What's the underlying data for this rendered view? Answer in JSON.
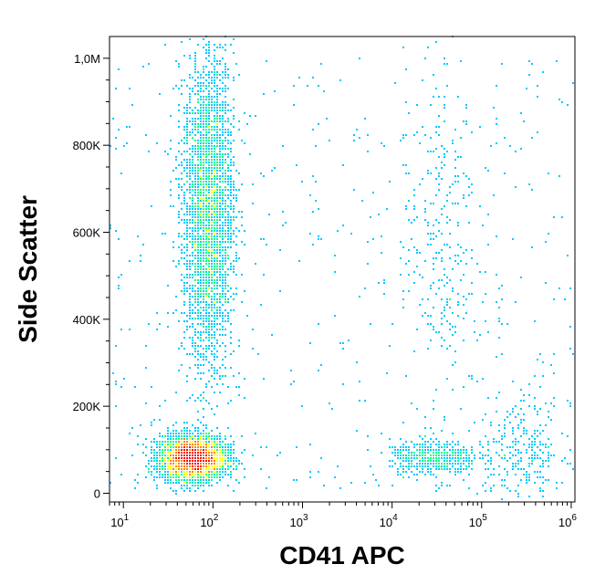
{
  "chart_data": {
    "type": "scatter",
    "subtype": "flow-cytometry-density-plot",
    "title": "",
    "xlabel": "CD41 APC",
    "ylabel": "Side Scatter",
    "x_scale": "log",
    "y_scale": "linear",
    "xlim": [
      7,
      1100000
    ],
    "ylim": [
      -20000,
      1050000
    ],
    "x_ticks": [
      {
        "value": 10,
        "base": "10",
        "exp": "1"
      },
      {
        "value": 100,
        "base": "10",
        "exp": "2"
      },
      {
        "value": 1000,
        "base": "10",
        "exp": "3"
      },
      {
        "value": 10000,
        "base": "10",
        "exp": "4"
      },
      {
        "value": 100000,
        "base": "10",
        "exp": "5"
      },
      {
        "value": 1000000,
        "base": "10",
        "exp": "6"
      }
    ],
    "y_ticks": [
      {
        "value": 0,
        "label": "0"
      },
      {
        "value": 200000,
        "label": "200K"
      },
      {
        "value": 400000,
        "label": "400K"
      },
      {
        "value": 600000,
        "label": "600K"
      },
      {
        "value": 800000,
        "label": "800K"
      },
      {
        "value": 1000000,
        "label": "1,0M"
      }
    ],
    "grid": false,
    "legend": "none",
    "color_scale": [
      "#0000ff",
      "#00c8ff",
      "#00ff80",
      "#ffff00",
      "#ff8000",
      "#ff0000"
    ],
    "populations": [
      {
        "name": "",
        "x_center": 60,
        "y_center": 80000,
        "x_spread_log": 0.18,
        "y_spread": 25000,
        "density": "very high"
      },
      {
        "name": "",
        "x_center": 90,
        "y_center": 650000,
        "x_spread_log": 0.14,
        "y_spread": 180000,
        "density": "high"
      },
      {
        "name": "",
        "x_center": 35000,
        "y_center": 600000,
        "x_spread_log": 0.2,
        "y_spread": 200000,
        "density": "low"
      },
      {
        "name": "",
        "x_center": 30000,
        "y_center": 80000,
        "x_spread_log": 0.25,
        "y_spread": 20000,
        "density": "medium"
      },
      {
        "name": "",
        "x_center": 300000,
        "y_center": 100000,
        "x_spread_log": 0.25,
        "y_spread": 60000,
        "density": "low"
      }
    ]
  }
}
